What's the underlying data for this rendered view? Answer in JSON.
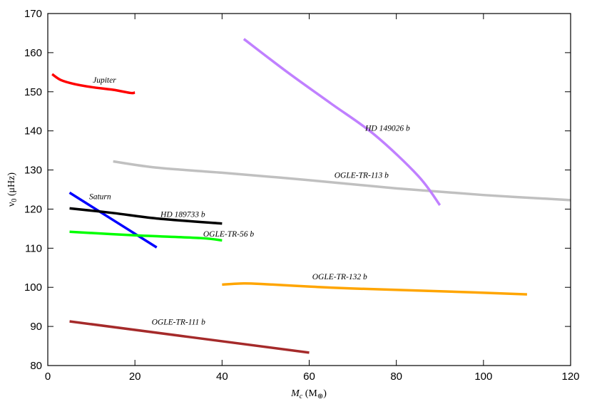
{
  "chart_data": {
    "type": "line",
    "title": "",
    "xlabel": {
      "main": "M",
      "sub": "c",
      "rest": " (M",
      "sub2": "⊕",
      "close": ")"
    },
    "ylabel": {
      "main": "ν",
      "sub": "0",
      "rest": " (μHz)"
    },
    "xlim": [
      0,
      120
    ],
    "ylim": [
      80,
      170
    ],
    "xticks": [
      0,
      20,
      40,
      60,
      80,
      100,
      120
    ],
    "yticks": [
      80,
      90,
      100,
      110,
      120,
      130,
      140,
      150,
      160,
      170
    ],
    "grid": false,
    "legend": "none (inline labels)",
    "series": [
      {
        "name": "Jupiter",
        "color": "#ff0000",
        "label_at": [
          13,
          152.3
        ],
        "x": [
          1,
          3,
          6,
          10,
          15,
          19,
          20
        ],
        "y": [
          154.5,
          153,
          152,
          151.2,
          150.5,
          149.7,
          149.8
        ]
      },
      {
        "name": "Saturn",
        "color": "#0000ff",
        "label_at": [
          12,
          122.5
        ],
        "x": [
          5,
          25
        ],
        "y": [
          124.2,
          110.2
        ]
      },
      {
        "name": "HD 189733 b",
        "color": "#000000",
        "label_at": [
          31,
          118
        ],
        "x": [
          5,
          15,
          25,
          40
        ],
        "y": [
          120.2,
          119,
          117.6,
          116.3
        ]
      },
      {
        "name": "OGLE-TR-56 b",
        "color": "#00ff00",
        "label_at": [
          41.5,
          113
        ],
        "x": [
          5,
          20,
          35,
          40
        ],
        "y": [
          114.2,
          113.3,
          112.6,
          112
        ]
      },
      {
        "name": "OGLE-TR-113 b",
        "color": "#c0c0c0",
        "label_at": [
          72,
          128
        ],
        "x": [
          15,
          25,
          40,
          60,
          80,
          100,
          120
        ],
        "y": [
          132.2,
          130.6,
          129.3,
          127.4,
          125.3,
          123.6,
          122.3
        ]
      },
      {
        "name": "HD 149026 b",
        "color": "#c080ff",
        "label_at": [
          78,
          140
        ],
        "x": [
          45,
          55,
          65,
          75,
          85,
          90
        ],
        "y": [
          163.5,
          155,
          147,
          139,
          128.5,
          121
        ]
      },
      {
        "name": "OGLE-TR-132 b",
        "color": "#ffa500",
        "label_at": [
          67,
          102
        ],
        "x": [
          40,
          45,
          50,
          60,
          70,
          90,
          110
        ],
        "y": [
          100.7,
          101,
          100.8,
          100.2,
          99.7,
          99,
          98.2
        ]
      },
      {
        "name": "OGLE-TR-111 b",
        "color": "#a52a2a",
        "label_at": [
          30,
          90.5
        ],
        "x": [
          5,
          60
        ],
        "y": [
          91.3,
          83.3
        ]
      }
    ]
  }
}
